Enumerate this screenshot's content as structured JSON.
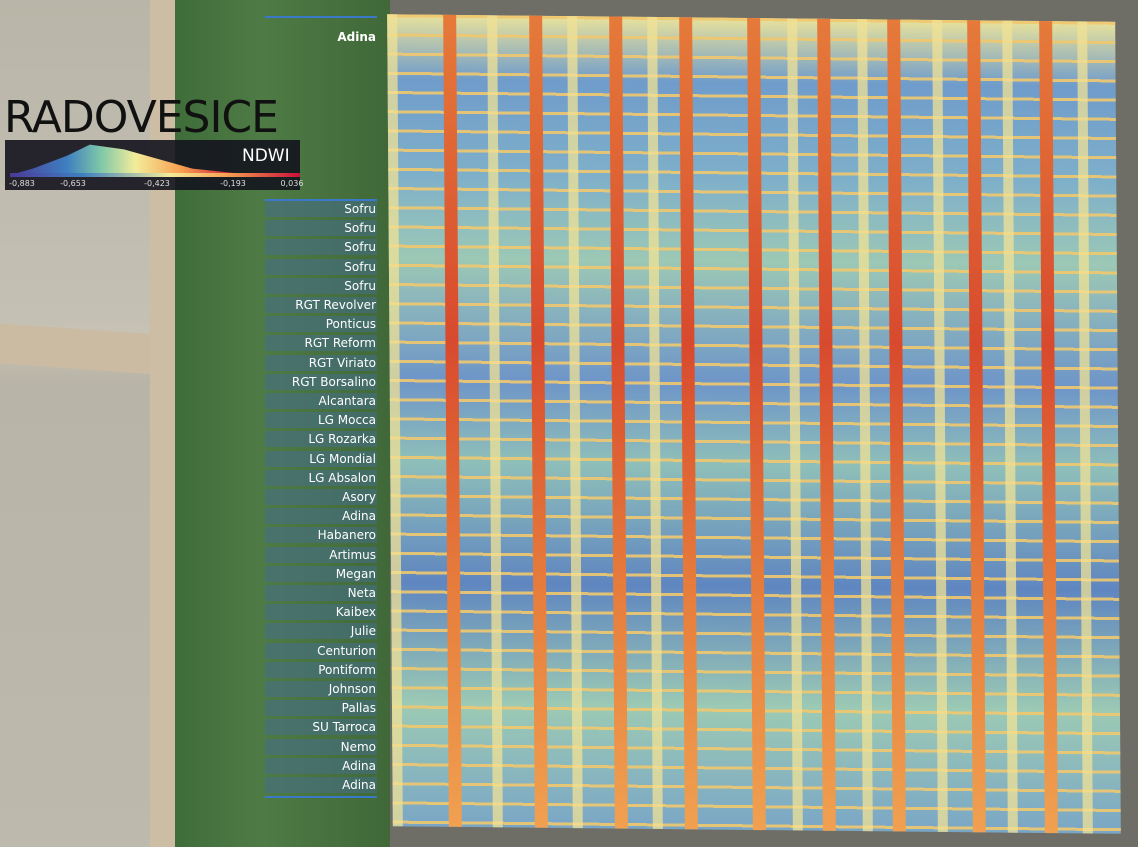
{
  "header": {
    "title": "RADOVESICE"
  },
  "legend": {
    "label": "NDWI",
    "ticks": [
      "-0,883",
      "-0,653",
      "-0,423",
      "-0,193",
      "0,036"
    ]
  },
  "plots": {
    "top": "Adina",
    "rows": [
      "Sofru",
      "Sofru",
      "Sofru",
      "Sofru",
      "Sofru",
      "RGT Revolver",
      "Ponticus",
      "RGT Reform",
      "RGT Viriato",
      "RGT Borsalino",
      "Alcantara",
      "LG Mocca",
      "LG Rozarka",
      "LG Mondial",
      "LG Absalon",
      "Asory",
      "Adina",
      "Habanero",
      "Artimus",
      "Megan",
      "Neta",
      "Kaibex",
      "Julie",
      "Centurion",
      "Pontiform",
      "Johnson",
      "Pallas",
      "SU Tarroca",
      "Nemo",
      "Adina",
      "Adina"
    ]
  }
}
